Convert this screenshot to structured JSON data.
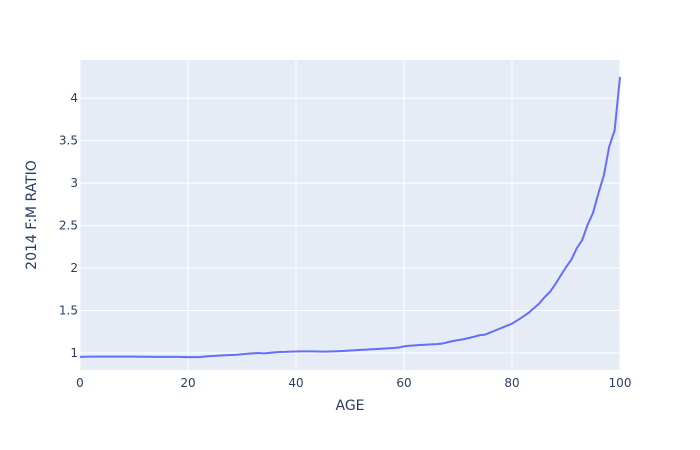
{
  "chart_data": {
    "type": "line",
    "title": "",
    "xlabel": "AGE",
    "ylabel": "2014 F:M RATIO",
    "xlim": [
      0,
      100
    ],
    "ylim": [
      0.8,
      4.45
    ],
    "x_ticks": [
      0,
      20,
      40,
      60,
      80,
      100
    ],
    "y_ticks": [
      1,
      1.5,
      2,
      2.5,
      3,
      3.5,
      4
    ],
    "x_tick_labels": [
      "0",
      "20",
      "40",
      "60",
      "80",
      "100"
    ],
    "y_tick_labels": [
      "1",
      "1.5",
      "2",
      "2.5",
      "3",
      "3.5",
      "4"
    ],
    "grid": true,
    "colors": {
      "plot_bg": "#e5ecf6",
      "grid": "#ffffff",
      "line": "#636efa",
      "text": "#2a3f5f"
    },
    "series": [
      {
        "x": [
          0,
          1,
          2,
          3,
          4,
          5,
          6,
          7,
          8,
          9,
          10,
          11,
          12,
          13,
          14,
          15,
          16,
          17,
          18,
          19,
          20,
          21,
          22,
          23,
          24,
          25,
          26,
          27,
          28,
          29,
          30,
          31,
          32,
          33,
          34,
          35,
          36,
          37,
          38,
          39,
          40,
          41,
          42,
          43,
          44,
          45,
          46,
          47,
          48,
          49,
          50,
          51,
          52,
          53,
          54,
          55,
          56,
          57,
          58,
          59,
          60,
          61,
          62,
          63,
          64,
          65,
          66,
          67,
          68,
          69,
          70,
          71,
          72,
          73,
          74,
          75,
          76,
          77,
          78,
          79,
          80,
          81,
          82,
          83,
          84,
          85,
          86,
          87,
          88,
          89,
          90,
          91,
          92,
          93,
          94,
          95,
          96,
          97,
          98,
          99,
          100
        ],
        "y": [
          0.955,
          0.956,
          0.957,
          0.957,
          0.958,
          0.958,
          0.958,
          0.958,
          0.957,
          0.957,
          0.957,
          0.956,
          0.956,
          0.956,
          0.955,
          0.955,
          0.955,
          0.954,
          0.954,
          0.953,
          0.951,
          0.951,
          0.951,
          0.958,
          0.963,
          0.966,
          0.97,
          0.974,
          0.977,
          0.98,
          0.986,
          0.992,
          0.996,
          1.0,
          0.995,
          1.002,
          1.008,
          1.012,
          1.013,
          1.016,
          1.018,
          1.02,
          1.019,
          1.02,
          1.018,
          1.017,
          1.018,
          1.02,
          1.022,
          1.025,
          1.03,
          1.033,
          1.037,
          1.04,
          1.044,
          1.047,
          1.051,
          1.055,
          1.059,
          1.065,
          1.078,
          1.085,
          1.09,
          1.094,
          1.098,
          1.102,
          1.105,
          1.11,
          1.125,
          1.14,
          1.152,
          1.162,
          1.177,
          1.192,
          1.209,
          1.216,
          1.242,
          1.268,
          1.294,
          1.32,
          1.345,
          1.385,
          1.426,
          1.47,
          1.525,
          1.58,
          1.655,
          1.718,
          1.808,
          1.91,
          2.01,
          2.1,
          2.235,
          2.33,
          2.51,
          2.65,
          2.88,
          3.09,
          3.43,
          3.62,
          4.25
        ]
      }
    ]
  }
}
